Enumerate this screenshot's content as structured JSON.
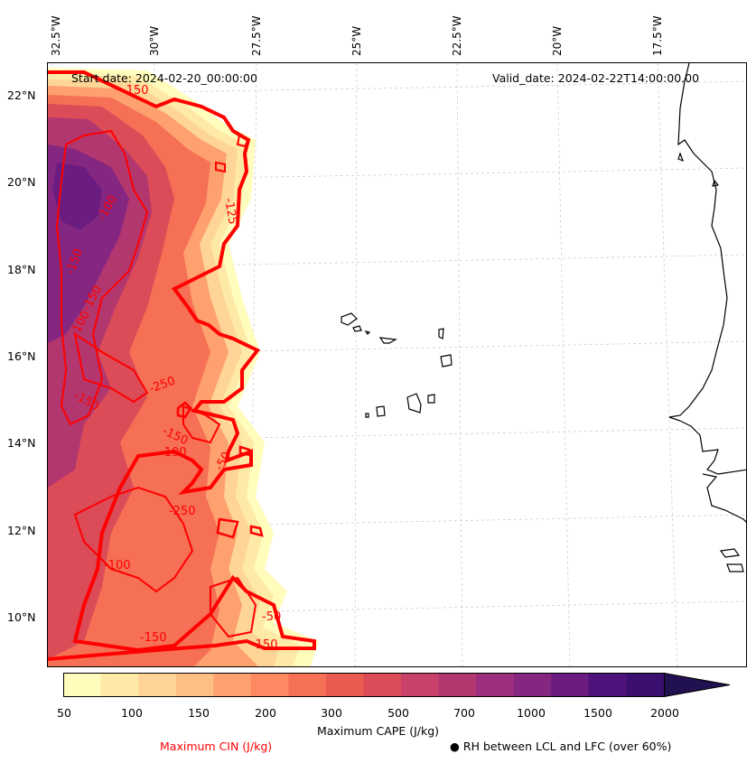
{
  "header": {
    "start_date": "Start date: 2024-02-20_00:00:00",
    "valid_date": "Valid_date: 2024-02-22T14:00:00.00"
  },
  "longitude_labels": [
    "32.5°W",
    "30°W",
    "27.5°W",
    "25°W",
    "22.5°W",
    "20°W",
    "17.5°W"
  ],
  "latitude_labels": [
    "22°N",
    "20°N",
    "18°N",
    "16°N",
    "14°N",
    "12°N",
    "10°N"
  ],
  "contour_labels": [
    "-150",
    "-100",
    "-250",
    "-150",
    "-150",
    "-100",
    "-150",
    "-150",
    "-50",
    "-100",
    "-150",
    "-100",
    "-150",
    "-50",
    "-125",
    "-250"
  ],
  "colorbar": {
    "ticks": [
      "50",
      "100",
      "150",
      "200",
      "300",
      "500",
      "700",
      "1000",
      "1500",
      "2000"
    ],
    "label": "Maximum CAPE (J/kg)",
    "colors": [
      "#fffcbc",
      "#fee9a6",
      "#fed597",
      "#febf84",
      "#fea16e",
      "#fc8961",
      "#f57055",
      "#ea5a4e",
      "#db4b58",
      "#c8416a",
      "#b2376f",
      "#9c2e7f",
      "#852681",
      "#6a1c81",
      "#4f127b",
      "#3b0f70",
      "#221150"
    ]
  },
  "legend": {
    "cin_label": "Maximum CIN (J/kg)",
    "rh_label": "RH between LCL and LFC (over 60%)",
    "cin_color": "#ff0000"
  }
}
